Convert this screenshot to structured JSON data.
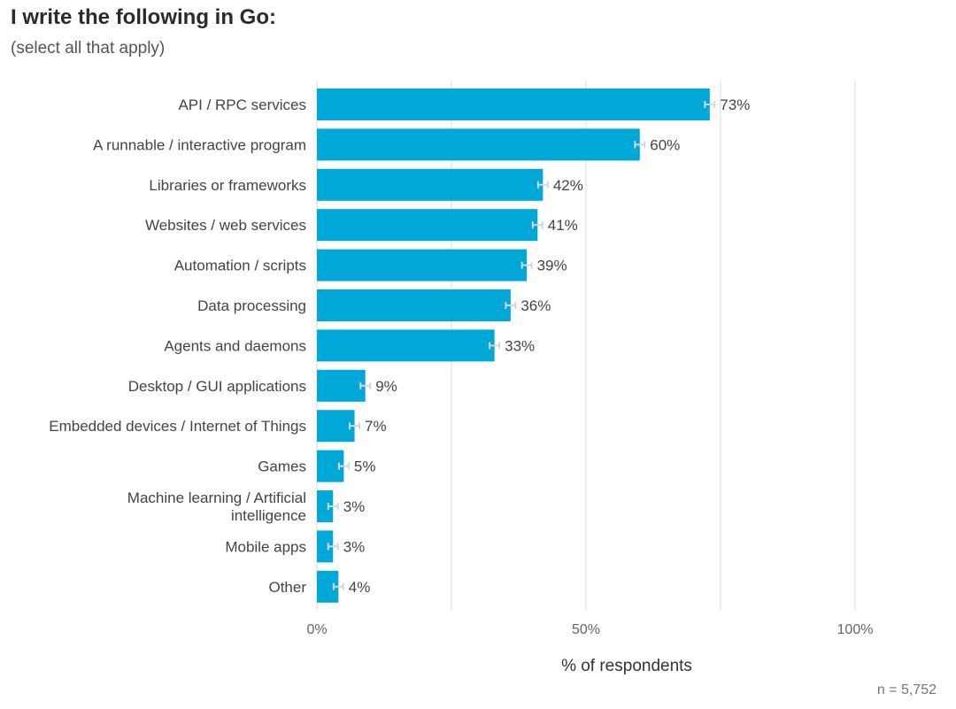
{
  "header": {
    "title": "I write the following in Go:",
    "subtitle": "(select all that apply)"
  },
  "footnote": "n =  5,752",
  "colors": {
    "bar": "#00a8d8",
    "error_bar": "#cfd8dc",
    "grid": "#e6e6e6"
  },
  "chart_data": {
    "type": "bar",
    "orientation": "horizontal",
    "title": "I write the following in Go:",
    "subtitle": "(select all that apply)",
    "xlabel": "% of respondents",
    "ylabel": "",
    "xlim": [
      0,
      100
    ],
    "xticks": [
      0,
      50,
      100
    ],
    "xtick_labels": [
      "0%",
      "50%",
      "100%"
    ],
    "grid": true,
    "categories": [
      "API / RPC services",
      "A runnable / interactive program",
      "Libraries or frameworks",
      "Websites / web services",
      "Automation / scripts",
      "Data processing",
      "Agents and daemons",
      "Desktop / GUI applications",
      "Embedded devices / Internet of Things",
      "Games",
      "Machine learning / Artificial intelligence",
      "Mobile apps",
      "Other"
    ],
    "values": [
      73,
      60,
      42,
      41,
      39,
      36,
      33,
      9,
      7,
      5,
      3,
      3,
      4
    ],
    "value_labels": [
      "73%",
      "60%",
      "42%",
      "41%",
      "39%",
      "36%",
      "33%",
      "9%",
      "7%",
      "5%",
      "3%",
      "3%",
      "4%"
    ],
    "error_bars": true
  }
}
